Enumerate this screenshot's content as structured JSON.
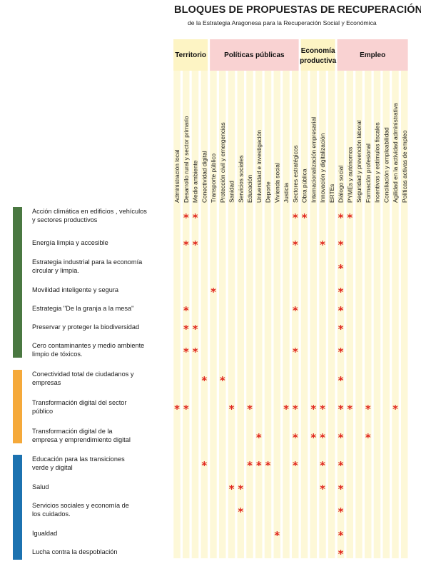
{
  "title": "BLOQUES DE PROPUESTAS DE RECUPERACIÓN",
  "subtitle": "de la Estrategia Aragonesa para la Recuperación Social y Económica",
  "colors": {
    "star": "#e0251c",
    "column_band": "#fdf8d8",
    "yellow_header": "#fdf4c4",
    "pink_header": "#f9d2d2",
    "green": "#4a7841",
    "orange": "#f5a93a",
    "blue": "#1c72b0"
  },
  "chart_data": {
    "type": "table",
    "groups": [
      {
        "label": "Territorio",
        "color": "yellow",
        "columns": [
          0,
          3
        ]
      },
      {
        "label": "Políticas públicas",
        "color": "pink",
        "columns": [
          4,
          13
        ]
      },
      {
        "label_lines": [
          "Economía",
          "productiva"
        ],
        "color": "yellow",
        "columns": [
          14,
          17
        ]
      },
      {
        "label": "Empleo",
        "color": "pink",
        "columns": [
          18,
          25
        ]
      }
    ],
    "columns": [
      "Administración local",
      "Desarrollo rural y sector primario",
      "Medio ambiente",
      "Conectividad digital",
      "Transporte público",
      "Protección civil y emergencias",
      "Sanidad",
      "Servicios sociales",
      "Educación",
      "Universidad e investigación",
      "Deporte",
      "Vivienda social",
      "Justicia",
      "Sectores estratégicos",
      "Obra pública",
      "Internacionalización empresarial",
      "Innovación y digitalización",
      "ERTEs",
      "Diálogo social",
      "PYMEs y autónomos",
      "Seguridad y prevención laboral",
      "Formación profesional",
      "Incentivos y estímulos fiscales",
      "Conciliación y empleabilidad",
      "Agilidad en la actividad administrativa",
      "Políticas activas de empleo"
    ],
    "row_groups": [
      {
        "color": "green",
        "rows": [
          0,
          6
        ]
      },
      {
        "color": "orange",
        "rows": [
          7,
          9
        ]
      },
      {
        "color": "blue",
        "rows": [
          10,
          14
        ]
      }
    ],
    "rows": [
      {
        "lines": [
          "Acción climática en edificios , vehículos",
          "y sectores productivos"
        ],
        "marks": [
          1,
          2,
          13,
          14,
          18,
          19
        ]
      },
      {
        "lines": [
          "Energía limpia y accesible"
        ],
        "marks": [
          1,
          2,
          13,
          16,
          18
        ]
      },
      {
        "lines": [
          "Estrategia industrial para la economía",
          "circular y limpia."
        ],
        "marks": [
          18
        ]
      },
      {
        "lines": [
          "Movilidad inteligente y segura"
        ],
        "marks": [
          4,
          18
        ]
      },
      {
        "lines": [
          "Estrategia \"De la granja a la mesa\""
        ],
        "marks": [
          1,
          13,
          18
        ]
      },
      {
        "lines": [
          "Preservar y proteger la biodiversidad"
        ],
        "marks": [
          1,
          2,
          18
        ]
      },
      {
        "lines": [
          "Cero contaminantes y medio ambiente",
          "limpio de tóxicos."
        ],
        "marks": [
          1,
          2,
          13,
          18
        ]
      },
      {
        "lines": [
          "Conectividad total de ciudadanos y",
          "empresas"
        ],
        "marks": [
          3,
          5,
          18
        ]
      },
      {
        "lines": [
          "Transformación digital del sector",
          "público"
        ],
        "marks": [
          0,
          1,
          6,
          8,
          12,
          13,
          15,
          16,
          18,
          19,
          21,
          24
        ]
      },
      {
        "lines": [
          "Transformación digital de la",
          "empresa y emprendimiento digital"
        ],
        "marks": [
          9,
          13,
          15,
          16,
          18,
          21
        ]
      },
      {
        "lines": [
          "Educación para las transiciones",
          "verde y digital"
        ],
        "marks": [
          3,
          8,
          9,
          10,
          13,
          16,
          18
        ]
      },
      {
        "lines": [
          "Salud"
        ],
        "marks": [
          6,
          7,
          16,
          18
        ]
      },
      {
        "lines": [
          "Servicios sociales y economía de",
          "los cuidados."
        ],
        "marks": [
          7,
          18
        ]
      },
      {
        "lines": [
          "Igualdad"
        ],
        "marks": [
          11,
          18
        ]
      },
      {
        "lines": [
          "Lucha contra la despoblación"
        ],
        "marks": [
          18
        ]
      }
    ],
    "mark_symbol": "*"
  }
}
